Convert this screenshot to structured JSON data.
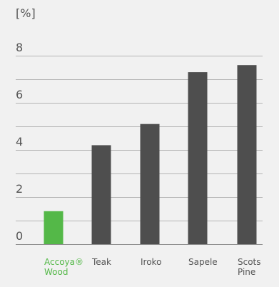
{
  "chart_data": {
    "type": "bar",
    "ylabel": "[%]",
    "categories": [
      [
        "Accoya®",
        "Wood"
      ],
      [
        "Teak"
      ],
      [
        "Iroko"
      ],
      [
        "Sapele"
      ],
      [
        "Scots",
        "Pine"
      ]
    ],
    "values": [
      1.4,
      4.2,
      5.1,
      7.3,
      7.6
    ],
    "highlight_index": 0,
    "ylim": [
      0,
      8
    ],
    "yticks": [
      0,
      2,
      4,
      6,
      8
    ],
    "grid": true,
    "colors": {
      "bar": "#4e4e4e",
      "highlight": "#54b848",
      "grid": "#b5b5b5",
      "text": "#555555",
      "background": "#f1f1f1"
    }
  }
}
